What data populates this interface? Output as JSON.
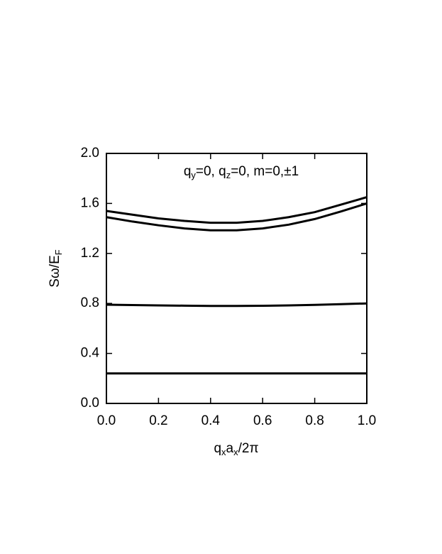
{
  "chart_data": {
    "type": "line",
    "annotation": [
      "q",
      "y",
      "=0, q",
      "z",
      "=0, m=0,±1"
    ],
    "xlabel": [
      "q",
      "x",
      "a",
      "x",
      "/2π"
    ],
    "ylabel": [
      "Sω/E",
      "F"
    ],
    "x": [
      0,
      0.1,
      0.2,
      0.3,
      0.4,
      0.5,
      0.6,
      0.7,
      0.8,
      0.9,
      1
    ],
    "series": [
      {
        "color": "#000000",
        "values": [
          1.54,
          1.51,
          1.48,
          1.46,
          1.445,
          1.445,
          1.46,
          1.49,
          1.53,
          1.59,
          1.65
        ]
      },
      {
        "color": "#000000",
        "values": [
          1.49,
          1.455,
          1.425,
          1.4,
          1.385,
          1.385,
          1.4,
          1.43,
          1.475,
          1.535,
          1.6
        ]
      },
      {
        "color": "#000000",
        "values": [
          0.79,
          0.787,
          0.784,
          0.782,
          0.78,
          0.78,
          0.781,
          0.784,
          0.788,
          0.794,
          0.8
        ]
      },
      {
        "color": "#000000",
        "values": [
          0.24,
          0.24,
          0.24,
          0.24,
          0.24,
          0.24,
          0.24,
          0.24,
          0.24,
          0.24,
          0.24
        ]
      }
    ],
    "xlim": [
      0,
      1
    ],
    "xticks": [
      {
        "value": 0,
        "label": "0.0"
      },
      0.2,
      0.4,
      0.6,
      0.8,
      {
        "value": 1,
        "label": "1.0"
      }
    ],
    "ylim": [
      0,
      2
    ],
    "yticks": [
      {
        "value": 0,
        "label": "0.0"
      },
      0.4,
      0.8,
      1.2,
      1.6,
      {
        "value": 2,
        "label": "2.0"
      }
    ],
    "grid": false
  }
}
